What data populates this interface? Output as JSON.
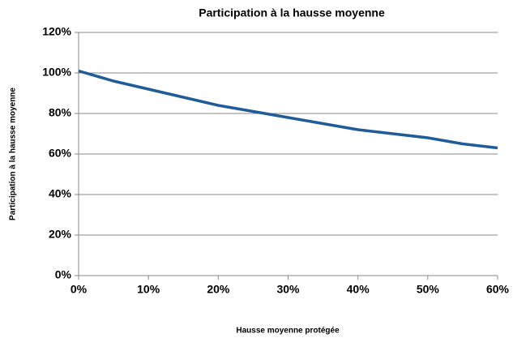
{
  "chart_data": {
    "type": "line",
    "title": "Participation à la hausse moyenne",
    "xlabel": "Hausse moyenne protégée",
    "ylabel": "Participation à la hausse moyenne",
    "x": [
      0,
      5,
      10,
      15,
      20,
      25,
      30,
      35,
      40,
      45,
      50,
      55,
      60
    ],
    "series": [
      {
        "name": "Participation",
        "color": "#1f5c99",
        "values": [
          101,
          96,
          92,
          88,
          84,
          81,
          78,
          75,
          72,
          70,
          68,
          65,
          63
        ]
      }
    ],
    "xlim": [
      0,
      60
    ],
    "xticks": [
      {
        "value": 0,
        "label": "0%"
      },
      {
        "value": 10,
        "label": "10%"
      },
      {
        "value": 20,
        "label": "20%"
      },
      {
        "value": 30,
        "label": "30%"
      },
      {
        "value": 40,
        "label": "40%"
      },
      {
        "value": 50,
        "label": "50%"
      },
      {
        "value": 60,
        "label": "60%"
      }
    ],
    "ylim": [
      0,
      120
    ],
    "yticks": [
      {
        "value": 0,
        "label": "0%"
      },
      {
        "value": 20,
        "label": "20%"
      },
      {
        "value": 40,
        "label": "40%"
      },
      {
        "value": 60,
        "label": "60%"
      },
      {
        "value": 80,
        "label": "80%"
      },
      {
        "value": 100,
        "label": "100%"
      },
      {
        "value": 120,
        "label": "120%"
      }
    ],
    "grid": true
  }
}
